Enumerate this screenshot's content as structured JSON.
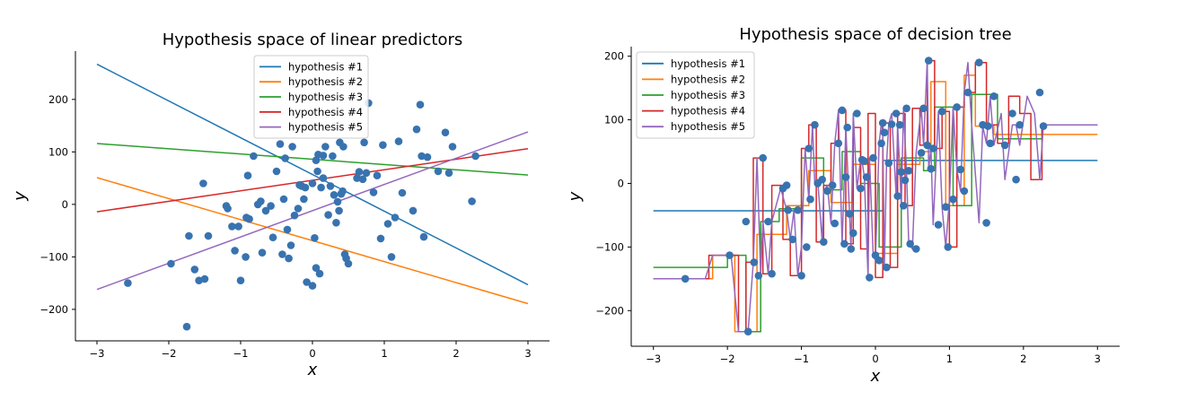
{
  "chart_data": [
    {
      "type": "line",
      "title": "Hypothesis space of linear predictors",
      "xlabel": "x",
      "ylabel": "y",
      "xlim": [
        -3.3,
        3.3
      ],
      "ylim": [
        -260,
        292
      ],
      "xticks": [
        -3,
        -2,
        -1,
        0,
        1,
        2,
        3
      ],
      "yticks": [
        -200,
        -100,
        0,
        100,
        200
      ],
      "grid": false,
      "legend_position": "top-center",
      "scatter": {
        "x": [
          -2.57,
          -1.75,
          -1.72,
          -1.97,
          -1.64,
          -1.58,
          -1.52,
          -1.45,
          -1.5,
          -1.2,
          -1.18,
          -1.12,
          -1.08,
          -1.03,
          -1.0,
          -0.93,
          -0.9,
          -0.92,
          -0.88,
          -0.82,
          -0.76,
          -0.72,
          -0.7,
          -0.65,
          -0.58,
          -0.55,
          -0.5,
          -0.45,
          -0.42,
          -0.4,
          -0.38,
          -0.35,
          -0.33,
          -0.3,
          -0.28,
          -0.2,
          -0.18,
          -0.15,
          -0.12,
          -0.08,
          0.0,
          0.03,
          0.05,
          0.07,
          0.08,
          0.1,
          0.12,
          0.15,
          0.18,
          0.22,
          0.28,
          0.3,
          0.33,
          0.35,
          0.38,
          0.4,
          0.42,
          0.45,
          0.47,
          0.7,
          0.72,
          0.75,
          0.78,
          0.85,
          0.9,
          0.95,
          0.98,
          1.05,
          1.1,
          1.15,
          1.2,
          1.25,
          1.4,
          1.45,
          1.5,
          1.52,
          1.55,
          1.6,
          1.75,
          1.85,
          1.9,
          1.95,
          2.22,
          2.27,
          0.05,
          -0.1,
          0.15,
          0.25,
          0.62,
          0.37,
          0.43,
          0.0,
          0.5,
          0.65,
          -0.25
        ],
        "y": [
          -150,
          -233,
          -60,
          -113,
          -124,
          -145,
          40,
          -60,
          -142,
          -3,
          -8,
          -42,
          -88,
          -42,
          -145,
          -100,
          55,
          -25,
          -28,
          92,
          0,
          6,
          -92,
          -12,
          -3,
          -63,
          63,
          115,
          -95,
          10,
          88,
          -48,
          -103,
          -78,
          110,
          -8,
          37,
          35,
          10,
          -148,
          40,
          -64,
          -121,
          63,
          95,
          -132,
          32,
          93,
          110,
          -20,
          92,
          18,
          -35,
          5,
          118,
          20,
          25,
          -95,
          -103,
          48,
          118,
          60,
          193,
          23,
          55,
          -65,
          113,
          -37,
          -100,
          -25,
          120,
          22,
          -12,
          143,
          190,
          92,
          -62,
          90,
          63,
          137,
          60,
          110,
          6,
          92,
          84,
          32,
          50,
          35,
          50,
          -12,
          110,
          -155,
          -113,
          62,
          -21
        ]
      },
      "series": [
        {
          "name": "hypothesis #1",
          "color": "#1f77b4",
          "x": [
            -3,
            3
          ],
          "y": [
            267,
            -153
          ]
        },
        {
          "name": "hypothesis #2",
          "color": "#ff7f0e",
          "x": [
            -3,
            3
          ],
          "y": [
            51,
            -189
          ]
        },
        {
          "name": "hypothesis #3",
          "color": "#2ca02c",
          "x": [
            -3,
            3
          ],
          "y": [
            116,
            56
          ]
        },
        {
          "name": "hypothesis #4",
          "color": "#d62728",
          "x": [
            -3,
            3
          ],
          "y": [
            -14,
            106
          ]
        },
        {
          "name": "hypothesis #5",
          "color": "#9467bd",
          "x": [
            -3,
            3
          ],
          "y": [
            -162,
            138
          ]
        }
      ]
    },
    {
      "type": "line",
      "title": "Hypothesis space of decision tree",
      "xlabel": "x",
      "ylabel": "y",
      "xlim": [
        -3.3,
        3.3
      ],
      "ylim": [
        -256,
        215
      ],
      "xticks": [
        -3,
        -2,
        -1,
        0,
        1,
        2,
        3
      ],
      "yticks": [
        -200,
        -100,
        0,
        100,
        200
      ],
      "grid": false,
      "legend_position": "top-left",
      "scatter": {
        "x": [
          -2.57,
          -1.97,
          -1.75,
          -1.72,
          -1.64,
          -1.58,
          -1.52,
          -1.45,
          -1.4,
          -1.25,
          -1.2,
          -1.18,
          -1.12,
          -1.05,
          -1.0,
          -0.93,
          -0.9,
          -0.88,
          -0.82,
          -0.78,
          -0.72,
          -0.7,
          -0.65,
          -0.58,
          -0.55,
          -0.5,
          -0.45,
          -0.42,
          -0.4,
          -0.38,
          -0.35,
          -0.33,
          -0.3,
          -0.25,
          -0.2,
          -0.18,
          -0.15,
          -0.12,
          -0.08,
          -0.03,
          0.0,
          0.05,
          0.08,
          0.1,
          0.12,
          0.15,
          0.18,
          0.22,
          0.28,
          0.3,
          0.33,
          0.35,
          0.38,
          0.4,
          0.42,
          0.45,
          0.47,
          0.55,
          0.62,
          0.65,
          0.7,
          0.72,
          0.75,
          0.78,
          0.85,
          0.9,
          0.95,
          0.98,
          1.05,
          1.1,
          1.15,
          1.2,
          1.25,
          1.4,
          1.45,
          1.5,
          1.52,
          1.55,
          1.6,
          1.75,
          1.85,
          1.9,
          1.95,
          2.22,
          2.27
        ],
        "y": [
          -150,
          -113,
          -60,
          -233,
          -124,
          -145,
          40,
          -60,
          -142,
          -8,
          -3,
          -42,
          -88,
          -42,
          -145,
          -100,
          55,
          -25,
          92,
          0,
          6,
          -92,
          -12,
          -3,
          -63,
          63,
          115,
          -95,
          10,
          88,
          -48,
          -103,
          -78,
          110,
          -8,
          37,
          35,
          10,
          -148,
          40,
          -113,
          -121,
          63,
          95,
          80,
          -132,
          32,
          93,
          110,
          -20,
          92,
          18,
          -35,
          5,
          118,
          20,
          -95,
          -103,
          48,
          118,
          60,
          193,
          23,
          55,
          -65,
          113,
          -37,
          -100,
          -25,
          120,
          22,
          -12,
          143,
          190,
          92,
          -62,
          90,
          63,
          137,
          60,
          110,
          6,
          92,
          143,
          90
        ]
      },
      "series": [
        {
          "name": "hypothesis #1",
          "color": "#1f77b4",
          "x": [
            -3,
            0.1,
            0.1,
            3
          ],
          "y": [
            -43,
            -43,
            36,
            36
          ]
        },
        {
          "name": "hypothesis #2",
          "color": "#ff7f0e",
          "x": [
            -3,
            -2.2,
            -2.2,
            -1.9,
            -1.9,
            -1.6,
            -1.6,
            -1.2,
            -1.2,
            -0.9,
            -0.9,
            -0.6,
            -0.6,
            -0.3,
            -0.3,
            0.0,
            0.0,
            0.3,
            0.3,
            0.6,
            0.6,
            0.75,
            0.75,
            0.95,
            0.95,
            1.2,
            1.2,
            1.35,
            1.35,
            1.6,
            1.6,
            3
          ],
          "y": [
            -150,
            -150,
            -113,
            -113,
            -233,
            -233,
            -80,
            -80,
            -35,
            -35,
            20,
            20,
            -30,
            -30,
            30,
            30,
            -110,
            -110,
            30,
            30,
            50,
            50,
            160,
            160,
            -35,
            -35,
            170,
            170,
            90,
            90,
            77,
            77
          ]
        },
        {
          "name": "hypothesis #3",
          "color": "#2ca02c",
          "x": [
            -3,
            -2.0,
            -2.0,
            -1.75,
            -1.75,
            -1.55,
            -1.55,
            -1.3,
            -1.3,
            -1.0,
            -1.0,
            -0.7,
            -0.7,
            -0.45,
            -0.45,
            -0.2,
            -0.2,
            0.05,
            0.05,
            0.35,
            0.35,
            0.65,
            0.65,
            0.8,
            0.8,
            1.05,
            1.05,
            1.3,
            1.3,
            1.65,
            1.65,
            2.25,
            2.25,
            3
          ],
          "y": [
            -132,
            -132,
            -113,
            -113,
            -233,
            -233,
            -60,
            -60,
            -40,
            -40,
            40,
            40,
            -10,
            -10,
            50,
            50,
            0,
            0,
            -100,
            -100,
            40,
            40,
            20,
            20,
            120,
            120,
            -35,
            -35,
            140,
            140,
            70,
            70,
            92,
            92
          ]
        },
        {
          "name": "hypothesis #4",
          "color": "#d62728",
          "x": [
            -3,
            -2.25,
            -2.25,
            -1.85,
            -1.85,
            -1.75,
            -1.75,
            -1.65,
            -1.65,
            -1.52,
            -1.52,
            -1.4,
            -1.4,
            -1.25,
            -1.25,
            -1.15,
            -1.15,
            -1.0,
            -1.0,
            -0.9,
            -0.9,
            -0.8,
            -0.8,
            -0.7,
            -0.7,
            -0.6,
            -0.6,
            -0.5,
            -0.5,
            -0.4,
            -0.4,
            -0.3,
            -0.3,
            -0.2,
            -0.2,
            -0.1,
            -0.1,
            0.0,
            0.0,
            0.1,
            0.1,
            0.2,
            0.2,
            0.3,
            0.3,
            0.4,
            0.4,
            0.5,
            0.5,
            0.6,
            0.6,
            0.7,
            0.7,
            0.8,
            0.8,
            0.9,
            0.9,
            1.0,
            1.0,
            1.1,
            1.1,
            1.2,
            1.2,
            1.35,
            1.35,
            1.5,
            1.5,
            1.65,
            1.65,
            1.8,
            1.8,
            1.95,
            1.95,
            2.1,
            2.1,
            2.25,
            2.25,
            3
          ],
          "y": [
            -150,
            -150,
            -113,
            -113,
            -233,
            -233,
            -124,
            -124,
            40,
            40,
            -142,
            -142,
            -3,
            -3,
            -88,
            -88,
            -145,
            -145,
            55,
            55,
            92,
            92,
            -92,
            -92,
            -3,
            -3,
            63,
            63,
            115,
            115,
            -95,
            -95,
            88,
            88,
            -103,
            -103,
            110,
            110,
            -148,
            -148,
            95,
            95,
            -132,
            -132,
            110,
            110,
            -35,
            -35,
            118,
            118,
            60,
            60,
            193,
            193,
            55,
            55,
            113,
            113,
            -100,
            -100,
            120,
            120,
            143,
            143,
            190,
            190,
            92,
            92,
            63,
            63,
            137,
            137,
            110,
            110,
            6,
            6,
            92,
            92
          ]
        },
        {
          "name": "hypothesis #5",
          "color": "#9467bd",
          "x": [
            -3,
            -2.3,
            -2.2,
            -1.95,
            -1.85,
            -1.72,
            -1.65,
            -1.6,
            -1.55,
            -1.52,
            -1.45,
            -1.4,
            -1.28,
            -1.2,
            -1.15,
            -1.1,
            -1.05,
            -1.0,
            -0.95,
            -0.9,
            -0.85,
            -0.82,
            -0.78,
            -0.72,
            -0.7,
            -0.65,
            -0.6,
            -0.55,
            -0.5,
            -0.45,
            -0.42,
            -0.4,
            -0.35,
            -0.33,
            -0.3,
            -0.25,
            -0.2,
            -0.18,
            -0.15,
            -0.1,
            -0.08,
            -0.03,
            0.0,
            0.05,
            0.08,
            0.1,
            0.12,
            0.15,
            0.18,
            0.22,
            0.28,
            0.3,
            0.33,
            0.35,
            0.38,
            0.42,
            0.45,
            0.5,
            0.55,
            0.62,
            0.65,
            0.7,
            0.72,
            0.75,
            0.78,
            0.85,
            0.9,
            0.95,
            1.0,
            1.05,
            1.1,
            1.15,
            1.2,
            1.25,
            1.3,
            1.4,
            1.45,
            1.5,
            1.55,
            1.6,
            1.7,
            1.75,
            1.85,
            1.9,
            1.95,
            2.05,
            2.15,
            2.22,
            2.27,
            3
          ],
          "y": [
            -150,
            -150,
            -113,
            -113,
            -233,
            -233,
            -124,
            40,
            -145,
            -60,
            -142,
            -60,
            -8,
            -42,
            -88,
            -42,
            -145,
            -100,
            55,
            -25,
            92,
            0,
            6,
            -92,
            -12,
            -3,
            -63,
            63,
            115,
            -95,
            10,
            88,
            -48,
            -103,
            110,
            -8,
            37,
            35,
            10,
            -148,
            40,
            -113,
            -121,
            63,
            95,
            80,
            -132,
            32,
            93,
            110,
            -20,
            92,
            18,
            -35,
            118,
            20,
            -95,
            -103,
            48,
            118,
            60,
            193,
            23,
            55,
            -65,
            113,
            -37,
            -100,
            -25,
            120,
            22,
            -12,
            143,
            190,
            92,
            -62,
            90,
            63,
            137,
            60,
            110,
            6,
            92,
            92,
            60,
            137,
            110,
            6,
            92,
            92
          ]
        }
      ]
    }
  ]
}
